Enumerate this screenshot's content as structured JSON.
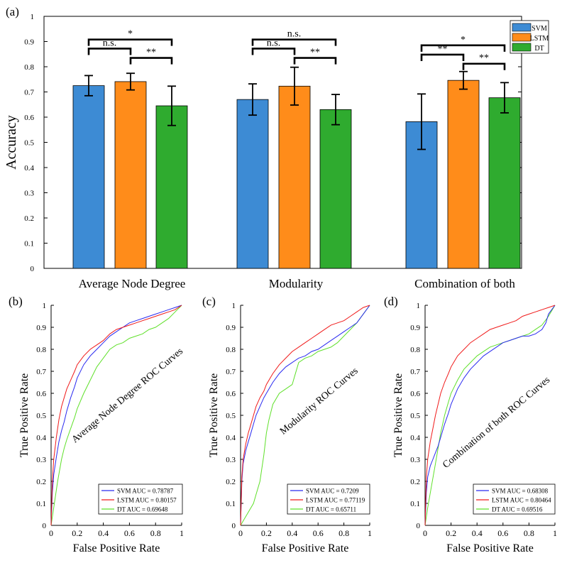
{
  "panel_labels": [
    "(a)",
    "(b)",
    "(c)",
    "(d)"
  ],
  "colors": {
    "SVM": "#3d8bd4",
    "LSTM": "#ff8c1a",
    "DT": "#2fab2f"
  },
  "chart_data": [
    {
      "type": "bar",
      "panel": "(a)",
      "title": "",
      "xlabel": "",
      "ylabel": "Accuracy",
      "ylim": [
        0,
        1
      ],
      "yticks": [
        0,
        0.1,
        0.2,
        0.3,
        0.4,
        0.5,
        0.6,
        0.7,
        0.8,
        0.9,
        1
      ],
      "ytick_labels": [
        "0",
        "0.1",
        "0.2",
        "0.3",
        "0.4",
        "0.5",
        "0.6",
        "0.7",
        "0.8",
        "0.9",
        "1"
      ],
      "categories": [
        "Average Node Degree",
        "Modularity",
        "Combination of both"
      ],
      "series": [
        {
          "name": "SVM",
          "values": [
            0.725,
            0.67,
            0.582
          ],
          "errors": [
            0.04,
            0.062,
            0.11
          ]
        },
        {
          "name": "LSTM",
          "values": [
            0.741,
            0.723,
            0.746
          ],
          "errors": [
            0.033,
            0.075,
            0.035
          ]
        },
        {
          "name": "DT",
          "values": [
            0.645,
            0.63,
            0.677
          ],
          "errors": [
            0.078,
            0.06,
            0.06
          ]
        }
      ],
      "legend": {
        "position": "top-right",
        "entries": [
          "SVM",
          "LSTM",
          "DT"
        ]
      },
      "significance": [
        {
          "group": 0,
          "from": 0,
          "to": 2,
          "level": 0.908,
          "label": "*"
        },
        {
          "group": 0,
          "from": 0,
          "to": 1,
          "level": 0.872,
          "label": "n.s."
        },
        {
          "group": 0,
          "from": 1,
          "to": 2,
          "level": 0.835,
          "label": "**"
        },
        {
          "group": 1,
          "from": 0,
          "to": 2,
          "level": 0.908,
          "label": "n.s."
        },
        {
          "group": 1,
          "from": 0,
          "to": 1,
          "level": 0.872,
          "label": "n.s."
        },
        {
          "group": 1,
          "from": 1,
          "to": 2,
          "level": 0.835,
          "label": "**"
        },
        {
          "group": 2,
          "from": 0,
          "to": 2,
          "level": 0.885,
          "label": "*"
        },
        {
          "group": 2,
          "from": 0,
          "to": 1,
          "level": 0.848,
          "label": "**"
        },
        {
          "group": 2,
          "from": 1,
          "to": 2,
          "level": 0.812,
          "label": "**"
        }
      ]
    },
    {
      "type": "line",
      "panel": "(b)",
      "title": "Average Node Degree ROC Curves",
      "xlabel": "False Positive Rate",
      "ylabel": "True Positive Rate",
      "xlim": [
        0,
        1
      ],
      "ylim": [
        0,
        1
      ],
      "xticks": [
        0,
        0.2,
        0.4,
        0.6,
        0.8,
        1
      ],
      "xtick_labels": [
        "0",
        "0.2",
        "0.4",
        "0.6",
        "0.8",
        "1"
      ],
      "yticks": [
        0,
        0.1,
        0.2,
        0.3,
        0.4,
        0.5,
        0.6,
        0.7,
        0.8,
        0.9,
        1
      ],
      "ytick_labels": [
        "0",
        "0.1",
        "0.2",
        "0.3",
        "0.4",
        "0.5",
        "0.6",
        "0.7",
        "0.8",
        "0.9",
        "1"
      ],
      "legend": {
        "position": "bottom-right"
      },
      "series": [
        {
          "name": "SVM",
          "legend_label": "SVM AUC = 0.78787",
          "x": [
            0,
            0.01,
            0.02,
            0.04,
            0.06,
            0.08,
            0.1,
            0.12,
            0.15,
            0.18,
            0.2,
            0.25,
            0.3,
            0.35,
            0.4,
            0.45,
            0.5,
            0.55,
            0.6,
            0.65,
            0.7,
            0.75,
            0.8,
            0.85,
            0.9,
            0.95,
            1
          ],
          "y": [
            0,
            0.15,
            0.23,
            0.31,
            0.38,
            0.43,
            0.47,
            0.52,
            0.58,
            0.63,
            0.67,
            0.73,
            0.77,
            0.8,
            0.83,
            0.86,
            0.88,
            0.9,
            0.92,
            0.93,
            0.94,
            0.95,
            0.96,
            0.97,
            0.98,
            0.99,
            1
          ]
        },
        {
          "name": "LSTM",
          "legend_label": "LSTM AUC = 0.80157",
          "x": [
            0,
            0.01,
            0.02,
            0.04,
            0.06,
            0.08,
            0.1,
            0.12,
            0.15,
            0.18,
            0.2,
            0.25,
            0.3,
            0.35,
            0.4,
            0.45,
            0.5,
            0.55,
            0.6,
            0.65,
            0.7,
            0.75,
            0.8,
            0.85,
            0.9,
            0.95,
            1
          ],
          "y": [
            0,
            0.2,
            0.3,
            0.4,
            0.48,
            0.54,
            0.58,
            0.62,
            0.66,
            0.7,
            0.73,
            0.77,
            0.8,
            0.82,
            0.84,
            0.87,
            0.89,
            0.9,
            0.91,
            0.92,
            0.93,
            0.94,
            0.95,
            0.96,
            0.97,
            0.98,
            1
          ]
        },
        {
          "name": "DT",
          "legend_label": "DT AUC = 0.69648",
          "x": [
            0,
            0.02,
            0.05,
            0.08,
            0.1,
            0.12,
            0.15,
            0.18,
            0.2,
            0.25,
            0.3,
            0.35,
            0.4,
            0.45,
            0.5,
            0.55,
            0.6,
            0.65,
            0.7,
            0.75,
            0.8,
            0.85,
            0.9,
            0.95,
            1
          ],
          "y": [
            0,
            0.08,
            0.2,
            0.3,
            0.35,
            0.39,
            0.44,
            0.49,
            0.53,
            0.6,
            0.66,
            0.72,
            0.76,
            0.8,
            0.82,
            0.83,
            0.85,
            0.86,
            0.87,
            0.89,
            0.9,
            0.92,
            0.94,
            0.97,
            1
          ]
        }
      ]
    },
    {
      "type": "line",
      "panel": "(c)",
      "title": "Modularity ROC Curves",
      "xlabel": "False Positive Rate",
      "ylabel": "True Positive Rate",
      "xlim": [
        0,
        1
      ],
      "ylim": [
        0,
        1
      ],
      "xticks": [
        0,
        0.2,
        0.4,
        0.6,
        0.8,
        1
      ],
      "xtick_labels": [
        "0",
        "0.2",
        "0.4",
        "0.6",
        "0.8",
        "1"
      ],
      "yticks": [
        0,
        0.1,
        0.2,
        0.3,
        0.4,
        0.5,
        0.6,
        0.7,
        0.8,
        0.9,
        1
      ],
      "ytick_labels": [
        "0",
        "0.1",
        "0.2",
        "0.3",
        "0.4",
        "0.5",
        "0.6",
        "0.7",
        "0.8",
        "0.9",
        "1"
      ],
      "legend": {
        "position": "bottom-right"
      },
      "series": [
        {
          "name": "SVM",
          "legend_label": "SVM AUC = 0.7209",
          "x": [
            0,
            0.01,
            0.02,
            0.04,
            0.06,
            0.08,
            0.1,
            0.12,
            0.15,
            0.18,
            0.2,
            0.25,
            0.3,
            0.35,
            0.4,
            0.45,
            0.5,
            0.55,
            0.6,
            0.65,
            0.7,
            0.75,
            0.8,
            0.85,
            0.9,
            0.95,
            1
          ],
          "y": [
            0,
            0.2,
            0.28,
            0.34,
            0.38,
            0.42,
            0.46,
            0.5,
            0.54,
            0.58,
            0.6,
            0.65,
            0.69,
            0.72,
            0.74,
            0.76,
            0.77,
            0.79,
            0.8,
            0.82,
            0.84,
            0.86,
            0.88,
            0.9,
            0.92,
            0.96,
            1
          ]
        },
        {
          "name": "LSTM",
          "legend_label": "LSTM AUC = 0.77119",
          "x": [
            0,
            0.01,
            0.02,
            0.04,
            0.06,
            0.08,
            0.1,
            0.12,
            0.15,
            0.18,
            0.2,
            0.25,
            0.3,
            0.35,
            0.4,
            0.45,
            0.5,
            0.55,
            0.6,
            0.65,
            0.7,
            0.75,
            0.8,
            0.85,
            0.9,
            0.95,
            1
          ],
          "y": [
            0,
            0.22,
            0.3,
            0.37,
            0.42,
            0.46,
            0.5,
            0.54,
            0.58,
            0.61,
            0.64,
            0.69,
            0.73,
            0.76,
            0.79,
            0.81,
            0.83,
            0.85,
            0.87,
            0.89,
            0.91,
            0.92,
            0.93,
            0.95,
            0.97,
            0.99,
            1
          ]
        },
        {
          "name": "DT",
          "legend_label": "DT AUC = 0.65711",
          "x": [
            0,
            0.05,
            0.1,
            0.12,
            0.15,
            0.18,
            0.2,
            0.22,
            0.25,
            0.3,
            0.35,
            0.4,
            0.42,
            0.45,
            0.5,
            0.55,
            0.6,
            0.65,
            0.7,
            0.75,
            0.8,
            0.85,
            0.9,
            0.95,
            1
          ],
          "y": [
            0,
            0.05,
            0.1,
            0.14,
            0.2,
            0.32,
            0.42,
            0.48,
            0.55,
            0.6,
            0.62,
            0.64,
            0.68,
            0.74,
            0.76,
            0.77,
            0.79,
            0.8,
            0.81,
            0.83,
            0.86,
            0.89,
            0.92,
            0.96,
            1
          ]
        }
      ]
    },
    {
      "type": "line",
      "panel": "(d)",
      "title": "Combination of both ROC Curves",
      "xlabel": "False Positive Rate",
      "ylabel": "True Positive Rate",
      "xlim": [
        0,
        1
      ],
      "ylim": [
        0,
        1
      ],
      "xticks": [
        0,
        0.2,
        0.4,
        0.6,
        0.8,
        1
      ],
      "xtick_labels": [
        "0",
        "0.2",
        "0.4",
        "0.6",
        "0.8",
        "1"
      ],
      "yticks": [
        0,
        0.1,
        0.2,
        0.3,
        0.4,
        0.5,
        0.6,
        0.7,
        0.8,
        0.9,
        1
      ],
      "ytick_labels": [
        "0",
        "0.1",
        "0.2",
        "0.3",
        "0.4",
        "0.5",
        "0.6",
        "0.7",
        "0.8",
        "0.9",
        "1"
      ],
      "legend": {
        "position": "bottom-right"
      },
      "series": [
        {
          "name": "SVM",
          "legend_label": "SVM AUC = 0.68308",
          "x": [
            0,
            0.01,
            0.02,
            0.04,
            0.06,
            0.08,
            0.1,
            0.12,
            0.15,
            0.18,
            0.2,
            0.25,
            0.3,
            0.35,
            0.4,
            0.45,
            0.5,
            0.55,
            0.6,
            0.65,
            0.7,
            0.75,
            0.8,
            0.85,
            0.9,
            0.93,
            0.95,
            1
          ],
          "y": [
            0,
            0.15,
            0.22,
            0.27,
            0.3,
            0.33,
            0.36,
            0.4,
            0.46,
            0.51,
            0.55,
            0.62,
            0.67,
            0.71,
            0.74,
            0.77,
            0.79,
            0.81,
            0.83,
            0.84,
            0.85,
            0.86,
            0.86,
            0.87,
            0.89,
            0.92,
            0.96,
            1
          ]
        },
        {
          "name": "LSTM",
          "legend_label": "LSTM AUC = 0.80464",
          "x": [
            0,
            0.01,
            0.02,
            0.04,
            0.06,
            0.08,
            0.1,
            0.12,
            0.15,
            0.18,
            0.2,
            0.25,
            0.3,
            0.35,
            0.4,
            0.45,
            0.5,
            0.55,
            0.6,
            0.65,
            0.7,
            0.75,
            0.8,
            0.85,
            0.9,
            0.95,
            1
          ],
          "y": [
            0,
            0.22,
            0.3,
            0.38,
            0.44,
            0.5,
            0.55,
            0.6,
            0.65,
            0.69,
            0.72,
            0.77,
            0.8,
            0.83,
            0.85,
            0.87,
            0.89,
            0.9,
            0.91,
            0.92,
            0.93,
            0.95,
            0.96,
            0.97,
            0.98,
            0.99,
            1
          ]
        },
        {
          "name": "DT",
          "legend_label": "DT AUC = 0.69516",
          "x": [
            0,
            0.02,
            0.05,
            0.08,
            0.1,
            0.12,
            0.15,
            0.18,
            0.2,
            0.25,
            0.3,
            0.35,
            0.4,
            0.45,
            0.5,
            0.55,
            0.6,
            0.65,
            0.7,
            0.75,
            0.8,
            0.85,
            0.9,
            0.95,
            1
          ],
          "y": [
            0,
            0.08,
            0.18,
            0.28,
            0.35,
            0.42,
            0.5,
            0.56,
            0.6,
            0.66,
            0.71,
            0.74,
            0.77,
            0.79,
            0.81,
            0.82,
            0.83,
            0.84,
            0.85,
            0.86,
            0.87,
            0.89,
            0.91,
            0.95,
            1
          ]
        }
      ]
    }
  ]
}
